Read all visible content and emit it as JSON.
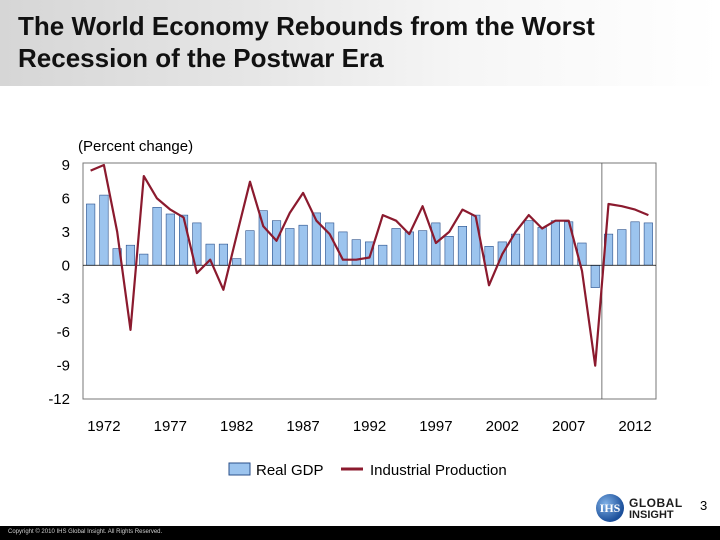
{
  "title_line1": "The World Economy Rebounds from the Worst",
  "title_line2": "Recession of the Postwar Era",
  "footer_copyright": "Copyright © 2010 IHS Global Insight. All Rights Reserved.",
  "page_number": "3",
  "logo": {
    "line1": "GLOBAL",
    "line2": "INSIGHT",
    "mark": "IHS"
  },
  "colors": {
    "bar_fill": "#9cc4ee",
    "bar_stroke": "#2a4f8a",
    "line": "#8b1a2e",
    "plot_border": "#777777",
    "footer_bg": "#000000"
  },
  "chart_data": {
    "type": "bar",
    "title": "",
    "subtitle": "(Percent change)",
    "xlabel": "",
    "ylabel": "",
    "ylim": [
      -12,
      9
    ],
    "yticks": [
      9,
      6,
      3,
      0,
      -3,
      -6,
      -9,
      -12
    ],
    "xticks": [
      1972,
      1977,
      1982,
      1987,
      1992,
      1997,
      2002,
      2007,
      2012
    ],
    "forecast_divider_after": 2009,
    "grid": false,
    "legend_position": "bottom",
    "x": [
      1971,
      1972,
      1973,
      1974,
      1975,
      1976,
      1977,
      1978,
      1979,
      1980,
      1981,
      1982,
      1983,
      1984,
      1985,
      1986,
      1987,
      1988,
      1989,
      1990,
      1991,
      1992,
      1993,
      1994,
      1995,
      1996,
      1997,
      1998,
      1999,
      2000,
      2001,
      2002,
      2003,
      2004,
      2005,
      2006,
      2007,
      2008,
      2009,
      2010,
      2011,
      2012,
      2013
    ],
    "series": [
      {
        "name": "Real GDP",
        "type": "bar",
        "values": [
          5.5,
          6.3,
          1.5,
          1.8,
          1.0,
          5.2,
          4.6,
          4.5,
          3.8,
          1.9,
          1.9,
          0.6,
          3.1,
          4.9,
          4.0,
          3.3,
          3.6,
          4.7,
          3.8,
          3.0,
          2.3,
          2.1,
          1.8,
          3.3,
          3.0,
          3.1,
          3.8,
          2.6,
          3.5,
          4.5,
          1.7,
          2.1,
          2.8,
          4.0,
          3.4,
          4.0,
          3.9,
          2.0,
          -2.0,
          2.8,
          3.2,
          3.9,
          3.8
        ]
      },
      {
        "name": "Industrial Production",
        "type": "line",
        "values": [
          8.5,
          9.0,
          3.0,
          -5.8,
          8.0,
          6.0,
          5.0,
          4.3,
          -0.7,
          0.5,
          -2.2,
          2.7,
          7.5,
          3.5,
          2.2,
          4.7,
          6.5,
          4.0,
          2.8,
          0.5,
          0.5,
          0.7,
          4.5,
          4.0,
          2.8,
          5.3,
          2.0,
          3.0,
          5.0,
          4.4,
          -1.8,
          1.0,
          3.0,
          4.5,
          3.3,
          4.0,
          4.0,
          -0.5,
          -9.0,
          5.5,
          5.3,
          5.0,
          4.5
        ]
      }
    ]
  }
}
